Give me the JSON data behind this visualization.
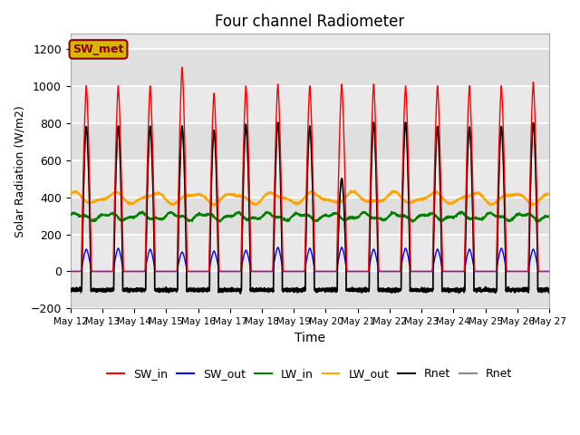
{
  "title": "Four channel Radiometer",
  "xlabel": "Time",
  "ylabel": "Solar Radiation (W/m2)",
  "ylim": [
    -200,
    1280
  ],
  "yticks": [
    -200,
    0,
    200,
    400,
    600,
    800,
    1000,
    1200
  ],
  "x_labels": [
    "May 12",
    "May 13",
    "May 14",
    "May 15",
    "May 16",
    "May 17",
    "May 18",
    "May 19",
    "May 20",
    "May 21",
    "May 22",
    "May 23",
    "May 24",
    "May 25",
    "May 26",
    "May 27"
  ],
  "num_days": 15,
  "annotation_text": "SW_met",
  "annotation_bg": "#d4b800",
  "annotation_fg": "#8b0000",
  "background_color": "#e8e8e8",
  "plot_bg_light": "#f0f0f0",
  "grid_color": "white",
  "sw_in_peaks": [
    1000,
    1000,
    1000,
    1100,
    960,
    1000,
    1010,
    1000,
    1010,
    1010,
    1000,
    1000,
    1000,
    1000,
    1020
  ],
  "sw_out_peaks": [
    120,
    125,
    120,
    105,
    110,
    115,
    130,
    125,
    130,
    120,
    125,
    120,
    120,
    125,
    120
  ],
  "rnet_peaks": [
    780,
    780,
    780,
    780,
    760,
    790,
    800,
    780,
    500,
    800,
    800,
    780,
    780,
    780,
    800
  ],
  "lw_in_base": 295,
  "lw_out_base": 395,
  "night_val": -100,
  "legend_colors": [
    "red",
    "blue",
    "green",
    "orange",
    "black",
    "#888888"
  ]
}
